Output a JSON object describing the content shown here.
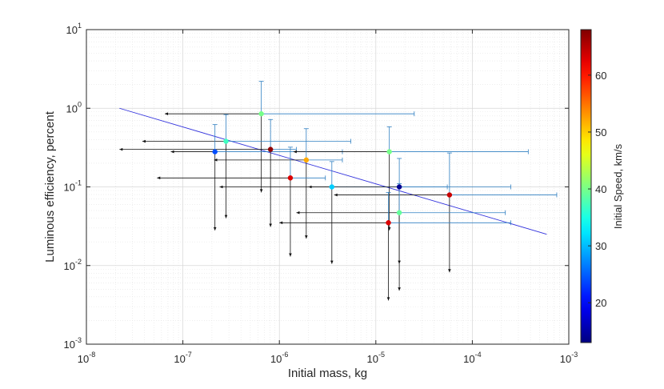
{
  "chart_data": {
    "type": "scatter",
    "title": "",
    "xlabel": "Initial mass, kg",
    "ylabel": "Luminous efficiency, percent",
    "xscale": "log",
    "yscale": "log",
    "xlim": [
      1e-08,
      0.001
    ],
    "ylim": [
      0.001,
      10
    ],
    "grid": true,
    "x_ticks": [
      {
        "base": "10",
        "exp": "-8"
      },
      {
        "base": "10",
        "exp": "-7"
      },
      {
        "base": "10",
        "exp": "-6"
      },
      {
        "base": "10",
        "exp": "-5"
      },
      {
        "base": "10",
        "exp": "-4"
      },
      {
        "base": "10",
        "exp": "-3"
      }
    ],
    "y_ticks": [
      {
        "base": "10",
        "exp": "-3"
      },
      {
        "base": "10",
        "exp": "-2"
      },
      {
        "base": "10",
        "exp": "-1"
      },
      {
        "base": "10",
        "exp": "0"
      },
      {
        "base": "10",
        "exp": "1"
      }
    ],
    "colorbar": {
      "label": "Initial Speed, km/s",
      "range": [
        13,
        68
      ],
      "ticks": [
        "20",
        "30",
        "40",
        "50",
        "60"
      ],
      "colormap": "jet"
    },
    "fit_line": {
      "color": "#3333dd",
      "points": [
        [
          2.2e-08,
          1.0
        ],
        [
          0.00059,
          0.025
        ]
      ]
    },
    "points": [
      {
        "x": 6.5e-07,
        "y": 0.85,
        "speed": 40,
        "x_err": [
          6.5e-08,
          2.5e-05
        ],
        "y_err": [
          0.085,
          2.2
        ]
      },
      {
        "x": 2.8e-07,
        "y": 0.38,
        "speed": 37,
        "x_err": [
          3.8e-08,
          5.5e-06
        ],
        "y_err": [
          0.04,
          0.83
        ]
      },
      {
        "x": 8.1e-07,
        "y": 0.3,
        "speed": 67,
        "x_err": [
          2.2e-08,
          1.5e-06
        ],
        "y_err": [
          0.031,
          0.72
        ]
      },
      {
        "x": 2.15e-07,
        "y": 0.28,
        "speed": 24,
        "x_err": [
          7.5e-08,
          4.5e-06
        ],
        "y_err": [
          0.028,
          0.62
        ]
      },
      {
        "x": 1.38e-05,
        "y": 0.28,
        "speed": 40,
        "x_err": [
          1.4e-06,
          0.00038
        ],
        "y_err": [
          0.028,
          0.58
        ]
      },
      {
        "x": 1.9e-06,
        "y": 0.22,
        "speed": 52,
        "x_err": [
          2.1e-07,
          4.5e-06
        ],
        "y_err": [
          0.022,
          0.55
        ]
      },
      {
        "x": 1.3e-06,
        "y": 0.13,
        "speed": 63,
        "x_err": [
          5.4e-08,
          3e-06
        ],
        "y_err": [
          0.013,
          0.32
        ]
      },
      {
        "x": 3.5e-06,
        "y": 0.1,
        "speed": 31,
        "x_err": [
          2.4e-07,
          5.5e-05
        ],
        "y_err": [
          0.0105,
          0.21
        ]
      },
      {
        "x": 1.75e-05,
        "y": 0.1,
        "speed": 14,
        "x_err": [
          2e-06,
          0.00025
        ],
        "y_err": [
          0.0105,
          0.23
        ]
      },
      {
        "x": 5.8e-05,
        "y": 0.079,
        "speed": 64,
        "x_err": [
          3.7e-06,
          0.00075
        ],
        "y_err": [
          0.0082,
          0.27
        ]
      },
      {
        "x": 1.75e-05,
        "y": 0.047,
        "speed": 39,
        "x_err": [
          1.5e-06,
          0.00022
        ],
        "y_err": [
          0.0048,
          0.11
        ]
      },
      {
        "x": 1.35e-05,
        "y": 0.035,
        "speed": 63,
        "x_err": [
          1e-06,
          0.00025
        ],
        "y_err": [
          0.0036,
          0.085
        ]
      }
    ]
  }
}
